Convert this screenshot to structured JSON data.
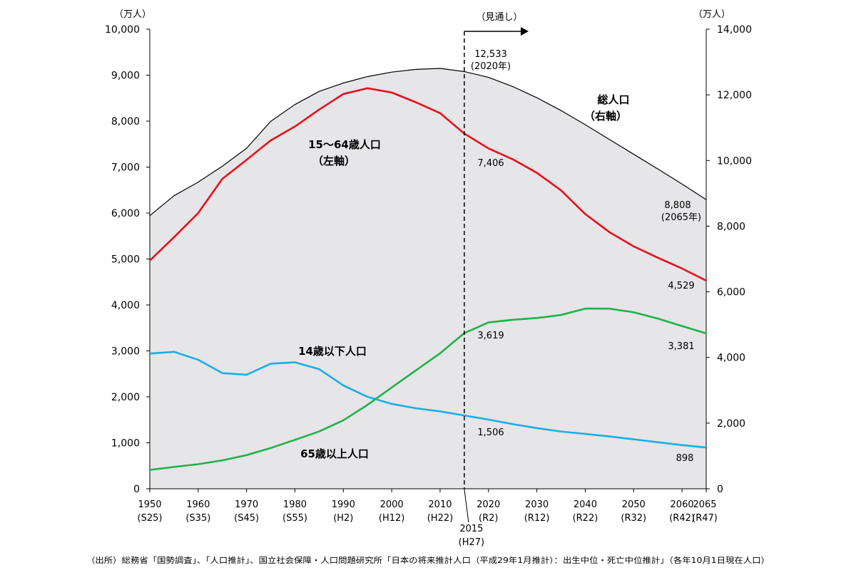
{
  "chart_data": {
    "type": "line",
    "units": {
      "left": "（万人）",
      "right": "（万人）"
    },
    "left_axis": {
      "range": [
        0,
        10000
      ],
      "ticks": [
        "0",
        "1,000",
        "2,000",
        "3,000",
        "4,000",
        "5,000",
        "6,000",
        "7,000",
        "8,000",
        "9,000",
        "10,000"
      ]
    },
    "right_axis": {
      "range": [
        0,
        14000
      ],
      "ticks": [
        "0",
        "2,000",
        "4,000",
        "6,000",
        "8,000",
        "10,000",
        "12,000",
        "14,000"
      ]
    },
    "x_axis": {
      "range": [
        1950,
        2065
      ],
      "ticks": [
        {
          "year": 1950,
          "label": "1950",
          "sub": "(S25)"
        },
        {
          "year": 1960,
          "label": "1960",
          "sub": "(S35)"
        },
        {
          "year": 1970,
          "label": "1970",
          "sub": "(S45)"
        },
        {
          "year": 1980,
          "label": "1980",
          "sub": "(S55)"
        },
        {
          "year": 1990,
          "label": "1990",
          "sub": "(H2)"
        },
        {
          "year": 2000,
          "label": "2000",
          "sub": "(H12)"
        },
        {
          "year": 2010,
          "label": "2010",
          "sub": "(H22)"
        },
        {
          "year": 2020,
          "label": "2020",
          "sub": "(R2)"
        },
        {
          "year": 2030,
          "label": "2030",
          "sub": "(R12)"
        },
        {
          "year": 2040,
          "label": "2040",
          "sub": "(R22)"
        },
        {
          "year": 2050,
          "label": "2050",
          "sub": "(R32)"
        },
        {
          "year": 2060,
          "label": "2060",
          "sub": "(R42)"
        },
        {
          "year": 2065,
          "label": "2065",
          "sub": "(R47)"
        }
      ]
    },
    "years": [
      1950,
      1955,
      1960,
      1965,
      1970,
      1975,
      1980,
      1985,
      1990,
      1995,
      2000,
      2005,
      2010,
      2015,
      2020,
      2025,
      2030,
      2035,
      2040,
      2045,
      2050,
      2055,
      2060,
      2065
    ],
    "series": [
      {
        "name": "総人口（右軸）",
        "label_lines": [
          "総人口",
          "（右軸）"
        ],
        "axis": "right",
        "color": "#000000",
        "fill": "#e6e5e7",
        "values": [
          8320,
          8928,
          9342,
          9828,
          10372,
          11194,
          11706,
          12105,
          12361,
          12557,
          12693,
          12777,
          12806,
          12709,
          12533,
          12254,
          11913,
          11522,
          11092,
          10642,
          10192,
          9744,
          9284,
          8808
        ]
      },
      {
        "name": "15～64歳人口（左軸）",
        "label_lines": [
          "15～64歳人口",
          "（左軸）"
        ],
        "axis": "left",
        "color": "#e8101e",
        "values": [
          4966,
          5473,
          6000,
          6744,
          7157,
          7581,
          7883,
          8251,
          8590,
          8716,
          8622,
          8409,
          8174,
          7728,
          7406,
          7170,
          6875,
          6494,
          5978,
          5584,
          5275,
          5028,
          4793,
          4529
        ]
      },
      {
        "name": "14歳以下人口",
        "label_lines": [
          "14歳以下人口"
        ],
        "axis": "left",
        "color": "#19aee6",
        "values": [
          2943,
          2980,
          2807,
          2517,
          2482,
          2722,
          2751,
          2603,
          2249,
          2001,
          1847,
          1752,
          1684,
          1595,
          1506,
          1407,
          1321,
          1246,
          1194,
          1138,
          1077,
          1012,
          951,
          898
        ]
      },
      {
        "name": "65歳以上人口",
        "label_lines": [
          "65歳以上人口"
        ],
        "axis": "left",
        "color": "#1eb24a",
        "values": [
          411,
          475,
          535,
          618,
          733,
          887,
          1065,
          1247,
          1489,
          1826,
          2204,
          2576,
          2948,
          3387,
          3619,
          3677,
          3716,
          3782,
          3921,
          3919,
          3841,
          3704,
          3540,
          3381
        ]
      }
    ],
    "annotations": {
      "projection_label": "（見通し）",
      "divider_year": 2015,
      "divider_label": [
        "2015",
        "(H27)"
      ],
      "peak_total": [
        "12,533",
        "(2020年)"
      ],
      "end_total": [
        "8,808",
        "(2065年)"
      ],
      "wa_2020": "7,406",
      "wa_2065": "4,529",
      "old_2020": "3,619",
      "old_2065": "3,381",
      "young_2020": "1,506",
      "young_2065": "898"
    },
    "source": "（出所）総務省「国勢調査」、「人口推計」、国立社会保障・人口問題研究所「日本の将来推計人口（平成29年1月推計）：出生中位・死亡中位推計」（各年10月1日現在人口）"
  }
}
